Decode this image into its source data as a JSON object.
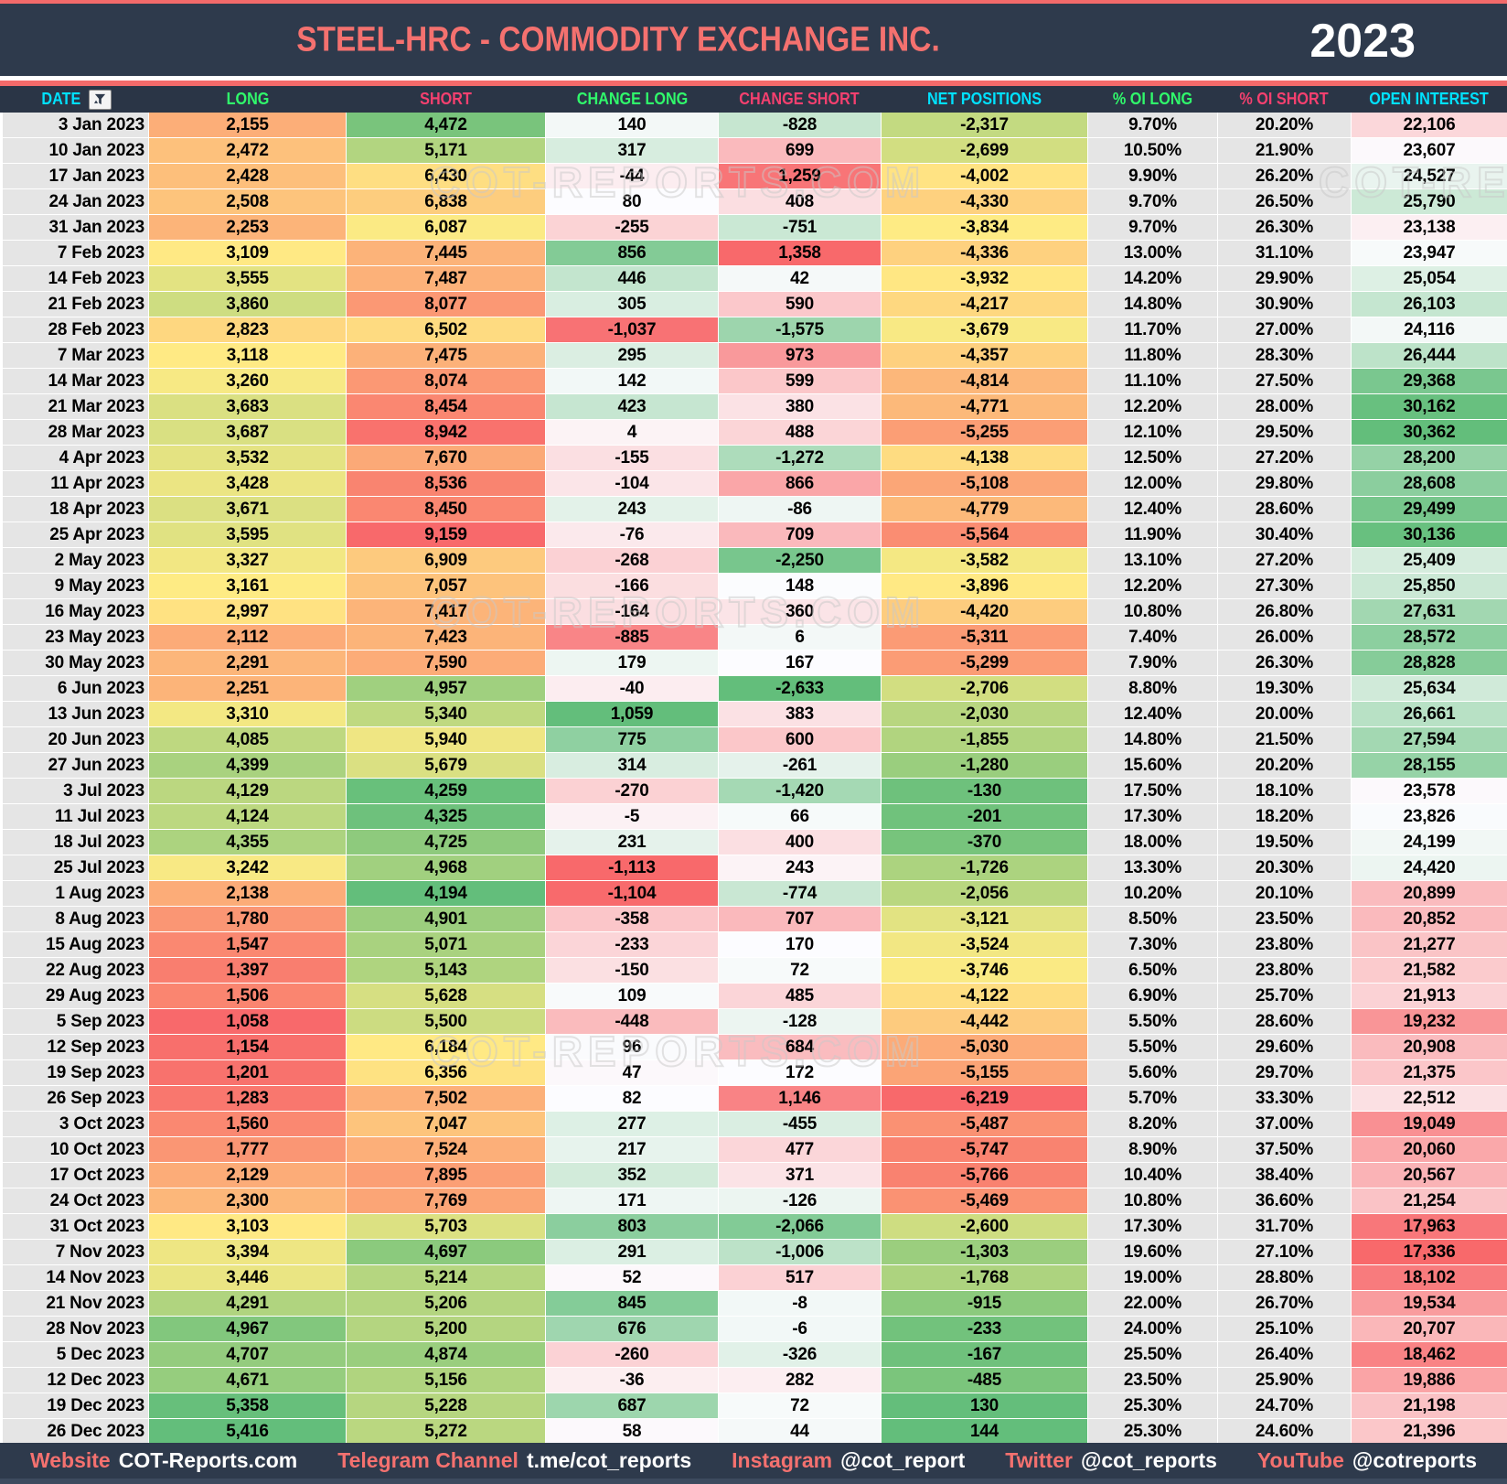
{
  "title": "STEEL-HRC - COMMODITY EXCHANGE INC.",
  "year": "2023",
  "watermark": "COT-REPORTS.COM",
  "scale_colors": {
    "red": "#F8696B",
    "yellow": "#FFEB84",
    "white": "#FCFCFF",
    "green": "#63BE7B"
  },
  "plain_bg": "#E5E5E5",
  "header_bg": "#2A3546",
  "columns": [
    {
      "key": "date",
      "label": "DATE",
      "color": "#00E1FF",
      "align": "right",
      "format": "text",
      "filter": true
    },
    {
      "key": "long",
      "label": "LONG",
      "color": "#30F96B",
      "format": "int",
      "scale": "ryg",
      "invert": false
    },
    {
      "key": "short",
      "label": "SHORT",
      "color": "#F5406F",
      "format": "int",
      "scale": "ryg",
      "invert": true
    },
    {
      "key": "change_long",
      "label": "CHANGE LONG",
      "color": "#30F96B",
      "format": "int",
      "scale": "rwg",
      "invert": false
    },
    {
      "key": "change_short",
      "label": "CHANGE SHORT",
      "color": "#F5406F",
      "format": "int",
      "scale": "rwg",
      "invert": true
    },
    {
      "key": "net_positions",
      "label": "NET POSITIONS",
      "color": "#00E1FF",
      "format": "int",
      "scale": "ryg",
      "invert": false
    },
    {
      "key": "oi_long_pct",
      "label": "% OI LONG",
      "color": "#30F96B",
      "format": "pct"
    },
    {
      "key": "oi_short_pct",
      "label": "% OI SHORT",
      "color": "#F5406F",
      "format": "pct"
    },
    {
      "key": "open_interest",
      "label": "OPEN INTEREST",
      "color": "#00E1FF",
      "format": "int",
      "scale": "rwg",
      "invert": false
    }
  ],
  "rows": [
    [
      "3 Jan 2023",
      2155,
      4472,
      140,
      -828,
      -2317,
      9.7,
      20.2,
      22106
    ],
    [
      "10 Jan 2023",
      2472,
      5171,
      317,
      699,
      -2699,
      10.5,
      21.9,
      23607
    ],
    [
      "17 Jan 2023",
      2428,
      6430,
      -44,
      1259,
      -4002,
      9.9,
      26.2,
      24527
    ],
    [
      "24 Jan 2023",
      2508,
      6838,
      80,
      408,
      -4330,
      9.7,
      26.5,
      25790
    ],
    [
      "31 Jan 2023",
      2253,
      6087,
      -255,
      -751,
      -3834,
      9.7,
      26.3,
      23138
    ],
    [
      "7 Feb 2023",
      3109,
      7445,
      856,
      1358,
      -4336,
      13.0,
      31.1,
      23947
    ],
    [
      "14 Feb 2023",
      3555,
      7487,
      446,
      42,
      -3932,
      14.2,
      29.9,
      25054
    ],
    [
      "21 Feb 2023",
      3860,
      8077,
      305,
      590,
      -4217,
      14.8,
      30.9,
      26103
    ],
    [
      "28 Feb 2023",
      2823,
      6502,
      -1037,
      -1575,
      -3679,
      11.7,
      27.0,
      24116
    ],
    [
      "7 Mar 2023",
      3118,
      7475,
      295,
      973,
      -4357,
      11.8,
      28.3,
      26444
    ],
    [
      "14 Mar 2023",
      3260,
      8074,
      142,
      599,
      -4814,
      11.1,
      27.5,
      29368
    ],
    [
      "21 Mar 2023",
      3683,
      8454,
      423,
      380,
      -4771,
      12.2,
      28.0,
      30162
    ],
    [
      "28 Mar 2023",
      3687,
      8942,
      4,
      488,
      -5255,
      12.1,
      29.5,
      30362
    ],
    [
      "4 Apr 2023",
      3532,
      7670,
      -155,
      -1272,
      -4138,
      12.5,
      27.2,
      28200
    ],
    [
      "11 Apr 2023",
      3428,
      8536,
      -104,
      866,
      -5108,
      12.0,
      29.8,
      28608
    ],
    [
      "18 Apr 2023",
      3671,
      8450,
      243,
      -86,
      -4779,
      12.4,
      28.6,
      29499
    ],
    [
      "25 Apr 2023",
      3595,
      9159,
      -76,
      709,
      -5564,
      11.9,
      30.4,
      30136
    ],
    [
      "2 May 2023",
      3327,
      6909,
      -268,
      -2250,
      -3582,
      13.1,
      27.2,
      25409
    ],
    [
      "9 May 2023",
      3161,
      7057,
      -166,
      148,
      -3896,
      12.2,
      27.3,
      25850
    ],
    [
      "16 May 2023",
      2997,
      7417,
      -164,
      360,
      -4420,
      10.8,
      26.8,
      27631
    ],
    [
      "23 May 2023",
      2112,
      7423,
      -885,
      6,
      -5311,
      7.4,
      26.0,
      28572
    ],
    [
      "30 May 2023",
      2291,
      7590,
      179,
      167,
      -5299,
      7.9,
      26.3,
      28828
    ],
    [
      "6 Jun 2023",
      2251,
      4957,
      -40,
      -2633,
      -2706,
      8.8,
      19.3,
      25634
    ],
    [
      "13 Jun 2023",
      3310,
      5340,
      1059,
      383,
      -2030,
      12.4,
      20.0,
      26661
    ],
    [
      "20 Jun 2023",
      4085,
      5940,
      775,
      600,
      -1855,
      14.8,
      21.5,
      27594
    ],
    [
      "27 Jun 2023",
      4399,
      5679,
      314,
      -261,
      -1280,
      15.6,
      20.2,
      28155
    ],
    [
      "3 Jul 2023",
      4129,
      4259,
      -270,
      -1420,
      -130,
      17.5,
      18.1,
      23578
    ],
    [
      "11 Jul 2023",
      4124,
      4325,
      -5,
      66,
      -201,
      17.3,
      18.2,
      23826
    ],
    [
      "18 Jul 2023",
      4355,
      4725,
      231,
      400,
      -370,
      18.0,
      19.5,
      24199
    ],
    [
      "25 Jul 2023",
      3242,
      4968,
      -1113,
      243,
      -1726,
      13.3,
      20.3,
      24420
    ],
    [
      "1 Aug 2023",
      2138,
      4194,
      -1104,
      -774,
      -2056,
      10.2,
      20.1,
      20899
    ],
    [
      "8 Aug 2023",
      1780,
      4901,
      -358,
      707,
      -3121,
      8.5,
      23.5,
      20852
    ],
    [
      "15 Aug 2023",
      1547,
      5071,
      -233,
      170,
      -3524,
      7.3,
      23.8,
      21277
    ],
    [
      "22 Aug 2023",
      1397,
      5143,
      -150,
      72,
      -3746,
      6.5,
      23.8,
      21582
    ],
    [
      "29 Aug 2023",
      1506,
      5628,
      109,
      485,
      -4122,
      6.9,
      25.7,
      21913
    ],
    [
      "5 Sep 2023",
      1058,
      5500,
      -448,
      -128,
      -4442,
      5.5,
      28.6,
      19232
    ],
    [
      "12 Sep 2023",
      1154,
      6184,
      96,
      684,
      -5030,
      5.5,
      29.6,
      20908
    ],
    [
      "19 Sep 2023",
      1201,
      6356,
      47,
      172,
      -5155,
      5.6,
      29.7,
      21375
    ],
    [
      "26 Sep 2023",
      1283,
      7502,
      82,
      1146,
      -6219,
      5.7,
      33.3,
      22512
    ],
    [
      "3 Oct 2023",
      1560,
      7047,
      277,
      -455,
      -5487,
      8.2,
      37.0,
      19049
    ],
    [
      "10 Oct 2023",
      1777,
      7524,
      217,
      477,
      -5747,
      8.9,
      37.5,
      20060
    ],
    [
      "17 Oct 2023",
      2129,
      7895,
      352,
      371,
      -5766,
      10.4,
      38.4,
      20567
    ],
    [
      "24 Oct 2023",
      2300,
      7769,
      171,
      -126,
      -5469,
      10.8,
      36.6,
      21254
    ],
    [
      "31 Oct 2023",
      3103,
      5703,
      803,
      -2066,
      -2600,
      17.3,
      31.7,
      17963
    ],
    [
      "7 Nov 2023",
      3394,
      4697,
      291,
      -1006,
      -1303,
      19.6,
      27.1,
      17336
    ],
    [
      "14 Nov 2023",
      3446,
      5214,
      52,
      517,
      -1768,
      19.0,
      28.8,
      18102
    ],
    [
      "21 Nov 2023",
      4291,
      5206,
      845,
      -8,
      -915,
      22.0,
      26.7,
      19534
    ],
    [
      "28 Nov 2023",
      4967,
      5200,
      676,
      -6,
      -233,
      24.0,
      25.1,
      20707
    ],
    [
      "5 Dec 2023",
      4707,
      4874,
      -260,
      -326,
      -167,
      25.5,
      26.4,
      18462
    ],
    [
      "12 Dec 2023",
      4671,
      5156,
      -36,
      282,
      -485,
      23.5,
      25.9,
      19886
    ],
    [
      "19 Dec 2023",
      5358,
      5228,
      687,
      72,
      130,
      25.3,
      24.7,
      21198
    ],
    [
      "26 Dec 2023",
      5416,
      5272,
      58,
      44,
      144,
      25.3,
      24.6,
      21396
    ]
  ],
  "footer": [
    {
      "label": "Website",
      "value": "COT-Reports.com"
    },
    {
      "label": "Telegram Channel",
      "value": "t.me/cot_reports"
    },
    {
      "label": "Instagram",
      "value": "@cot_report"
    },
    {
      "label": "Twitter",
      "value": "@cot_reports"
    },
    {
      "label": "YouTube",
      "value": "@cotreports"
    }
  ]
}
